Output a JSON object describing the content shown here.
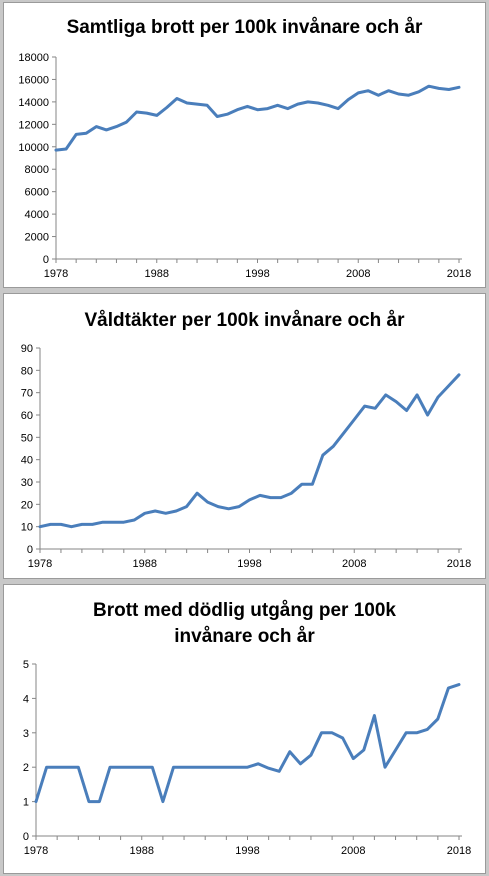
{
  "chart_data": [
    {
      "type": "line",
      "title": "Samtliga brott per 100k invånare och år",
      "xlabel": "",
      "ylabel": "",
      "x": [
        1978,
        1979,
        1980,
        1981,
        1982,
        1983,
        1984,
        1985,
        1986,
        1987,
        1988,
        1989,
        1990,
        1991,
        1992,
        1993,
        1994,
        1995,
        1996,
        1997,
        1998,
        1999,
        2000,
        2001,
        2002,
        2003,
        2004,
        2005,
        2006,
        2007,
        2008,
        2009,
        2010,
        2011,
        2012,
        2013,
        2014,
        2015,
        2016,
        2017,
        2018
      ],
      "values": [
        9700,
        9800,
        11100,
        11200,
        11800,
        11500,
        11800,
        12200,
        13100,
        13000,
        12800,
        13500,
        14300,
        13900,
        13800,
        13700,
        12700,
        12900,
        13300,
        13600,
        13300,
        13400,
        13700,
        13400,
        13800,
        14000,
        13900,
        13700,
        13400,
        14200,
        14800,
        15000,
        14600,
        15000,
        14700,
        14600,
        14900,
        15400,
        15200,
        15100,
        15300
      ],
      "ylim": [
        0,
        18000
      ],
      "yticks": [
        "0",
        "2000",
        "4000",
        "6000",
        "8000",
        "10000",
        "12000",
        "14000",
        "16000",
        "18000"
      ],
      "xticks": [
        "1978",
        "1988",
        "1998",
        "2008",
        "2018"
      ],
      "grid": false,
      "legend": "none"
    },
    {
      "type": "line",
      "title": "Våldtäkter per 100k invånare och år",
      "xlabel": "",
      "ylabel": "",
      "x": [
        1978,
        1979,
        1980,
        1981,
        1982,
        1983,
        1984,
        1985,
        1986,
        1987,
        1988,
        1989,
        1990,
        1991,
        1992,
        1993,
        1994,
        1995,
        1996,
        1997,
        1998,
        1999,
        2000,
        2001,
        2002,
        2003,
        2004,
        2005,
        2006,
        2007,
        2008,
        2009,
        2010,
        2011,
        2012,
        2013,
        2014,
        2015,
        2016,
        2017,
        2018
      ],
      "values": [
        10,
        11,
        11,
        10,
        11,
        11,
        12,
        12,
        12,
        13,
        16,
        17,
        16,
        17,
        19,
        25,
        21,
        19,
        18,
        19,
        22,
        24,
        23,
        23,
        25,
        29,
        29,
        42,
        46,
        52,
        58,
        64,
        63,
        69,
        66,
        62,
        69,
        60,
        68,
        73,
        78
      ],
      "ylim": [
        0,
        90
      ],
      "yticks": [
        "0",
        "10",
        "20",
        "30",
        "40",
        "50",
        "60",
        "70",
        "80",
        "90"
      ],
      "xticks": [
        "1978",
        "1988",
        "1998",
        "2008",
        "2018"
      ],
      "grid": false,
      "legend": "none"
    },
    {
      "type": "line",
      "title": "Brott med dödlig utgång per 100k invånare och år",
      "title_lines": [
        "Brott med dödlig utgång per 100k",
        "invånare och år"
      ],
      "xlabel": "",
      "ylabel": "",
      "x": [
        1978,
        1979,
        1980,
        1981,
        1982,
        1983,
        1984,
        1985,
        1986,
        1987,
        1988,
        1989,
        1990,
        1991,
        1992,
        1993,
        1994,
        1995,
        1996,
        1997,
        1998,
        1999,
        2000,
        2001,
        2002,
        2003,
        2004,
        2005,
        2006,
        2007,
        2008,
        2009,
        2010,
        2011,
        2012,
        2013,
        2014,
        2015,
        2016,
        2017,
        2018
      ],
      "values": [
        1,
        2,
        2,
        2,
        2,
        1,
        1,
        2,
        2,
        2,
        2,
        2,
        1,
        2,
        2,
        2,
        2,
        2,
        2,
        2,
        2,
        2.1,
        1.97,
        1.88,
        2.45,
        2.1,
        2.35,
        3,
        3,
        2.85,
        2.25,
        2.5,
        3.5,
        2,
        2.5,
        3,
        3,
        3.1,
        3.4,
        4.3,
        4.4
      ],
      "ylim": [
        0,
        5
      ],
      "yticks": [
        "0",
        "1",
        "2",
        "3",
        "4",
        "5"
      ],
      "xticks": [
        "1978",
        "1988",
        "1998",
        "2008",
        "2018"
      ],
      "grid": false,
      "legend": "none"
    }
  ]
}
